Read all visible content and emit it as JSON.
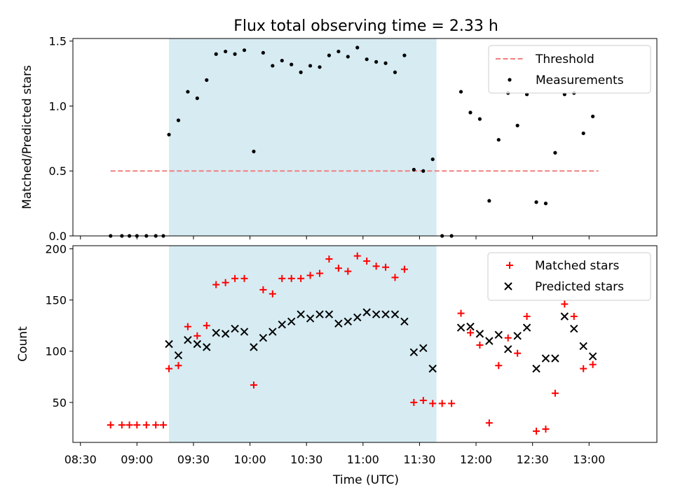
{
  "title": "Flux total observing time = 2.33 h",
  "colors": {
    "span": "#add8e6",
    "threshold": "#f08080",
    "measurement": "#000000",
    "matched": "#ff0000",
    "predicted": "#000000"
  },
  "chart_data": [
    {
      "type": "scatter",
      "ylabel": "Matched/Predicted stars",
      "xlim": [
        "08:26",
        "13:36"
      ],
      "ylim": [
        0,
        1.52
      ],
      "yticks": [
        "0.0",
        "0.5",
        "1.0",
        "1.5"
      ],
      "ytick_values": [
        0,
        0.5,
        1.0,
        1.5
      ],
      "shaded_span": [
        "09:17",
        "11:39"
      ],
      "legend": {
        "position": "top-right",
        "entries": [
          "Threshold",
          "Measurements"
        ]
      },
      "threshold": {
        "name": "Threshold",
        "value": 0.5,
        "x_range": [
          "08:46",
          "13:05"
        ]
      },
      "series": [
        {
          "name": "Measurements",
          "marker": "dot",
          "x": [
            "08:46",
            "08:52",
            "08:56",
            "09:00",
            "09:05",
            "09:10",
            "09:14",
            "09:17",
            "09:22",
            "09:27",
            "09:32",
            "09:37",
            "09:42",
            "09:47",
            "09:52",
            "09:57",
            "10:02",
            "10:07",
            "10:12",
            "10:17",
            "10:22",
            "10:27",
            "10:32",
            "10:37",
            "10:42",
            "10:47",
            "10:52",
            "10:57",
            "11:02",
            "11:07",
            "11:12",
            "11:17",
            "11:22",
            "11:27",
            "11:32",
            "11:37",
            "11:42",
            "11:47",
            "11:52",
            "11:57",
            "12:02",
            "12:07",
            "12:12",
            "12:17",
            "12:22",
            "12:27",
            "12:32",
            "12:37",
            "12:42",
            "12:47",
            "12:52",
            "12:57",
            "13:02"
          ],
          "y": [
            0,
            0,
            0,
            0,
            0,
            0,
            0,
            0.78,
            0.89,
            1.11,
            1.06,
            1.2,
            1.4,
            1.42,
            1.4,
            1.43,
            0.65,
            1.41,
            1.31,
            1.35,
            1.32,
            1.26,
            1.31,
            1.3,
            1.39,
            1.42,
            1.38,
            1.45,
            1.36,
            1.34,
            1.33,
            1.26,
            1.39,
            0.51,
            0.5,
            0.59,
            0,
            0,
            1.11,
            0.95,
            0.9,
            0.27,
            0.74,
            1.1,
            0.85,
            1.09,
            0.26,
            0.25,
            0.64,
            1.09,
            1.1,
            0.79,
            0.92
          ]
        }
      ]
    },
    {
      "type": "scatter",
      "xlabel": "Time (UTC)",
      "ylabel": "Count",
      "xlim": [
        "08:26",
        "13:36"
      ],
      "ylim": [
        11,
        203
      ],
      "xticks": [
        "08:30",
        "09:00",
        "09:30",
        "10:00",
        "10:30",
        "11:00",
        "11:30",
        "12:00",
        "12:30",
        "13:00"
      ],
      "yticks": [
        "50",
        "100",
        "150",
        "200"
      ],
      "ytick_values": [
        50,
        100,
        150,
        200
      ],
      "shaded_span": [
        "09:17",
        "11:39"
      ],
      "legend": {
        "position": "top-right",
        "entries": [
          "Matched stars",
          "Predicted stars"
        ]
      },
      "series": [
        {
          "name": "Matched stars",
          "marker": "plus",
          "x": [
            "08:46",
            "08:52",
            "08:56",
            "09:00",
            "09:05",
            "09:10",
            "09:14",
            "09:17",
            "09:22",
            "09:27",
            "09:32",
            "09:37",
            "09:42",
            "09:47",
            "09:52",
            "09:57",
            "10:02",
            "10:07",
            "10:12",
            "10:17",
            "10:22",
            "10:27",
            "10:32",
            "10:37",
            "10:42",
            "10:47",
            "10:52",
            "10:57",
            "11:02",
            "11:07",
            "11:12",
            "11:17",
            "11:22",
            "11:27",
            "11:32",
            "11:37",
            "11:42",
            "11:47",
            "11:52",
            "11:57",
            "12:02",
            "12:07",
            "12:12",
            "12:17",
            "12:22",
            "12:27",
            "12:32",
            "12:37",
            "12:42",
            "12:47",
            "12:52",
            "12:57",
            "13:02"
          ],
          "y": [
            28,
            28,
            28,
            28,
            28,
            28,
            28,
            83,
            86,
            124,
            115,
            125,
            165,
            167,
            171,
            171,
            67,
            160,
            156,
            171,
            171,
            171,
            174,
            176,
            190,
            181,
            178,
            193,
            188,
            183,
            182,
            172,
            180,
            50,
            52,
            49,
            49,
            49,
            137,
            118,
            106,
            30,
            86,
            113,
            98,
            134,
            22,
            24,
            59,
            146,
            134,
            83,
            87
          ]
        },
        {
          "name": "Predicted stars",
          "marker": "x",
          "x": [
            "09:17",
            "09:22",
            "09:27",
            "09:32",
            "09:37",
            "09:42",
            "09:47",
            "09:52",
            "09:57",
            "10:02",
            "10:07",
            "10:12",
            "10:17",
            "10:22",
            "10:27",
            "10:32",
            "10:37",
            "10:42",
            "10:47",
            "10:52",
            "10:57",
            "11:02",
            "11:07",
            "11:12",
            "11:17",
            "11:22",
            "11:27",
            "11:32",
            "11:37",
            "11:52",
            "11:57",
            "12:02",
            "12:07",
            "12:12",
            "12:17",
            "12:22",
            "12:27",
            "12:32",
            "12:37",
            "12:42",
            "12:47",
            "12:52",
            "12:57",
            "13:02"
          ],
          "y": [
            107,
            96,
            111,
            107,
            104,
            118,
            117,
            122,
            119,
            104,
            113,
            119,
            126,
            129,
            136,
            132,
            136,
            136,
            127,
            129,
            133,
            138,
            136,
            136,
            136,
            129,
            99,
            103,
            83,
            123,
            124,
            117,
            110,
            116,
            102,
            115,
            123,
            83,
            93,
            93,
            134,
            122,
            105,
            95
          ]
        }
      ]
    }
  ]
}
